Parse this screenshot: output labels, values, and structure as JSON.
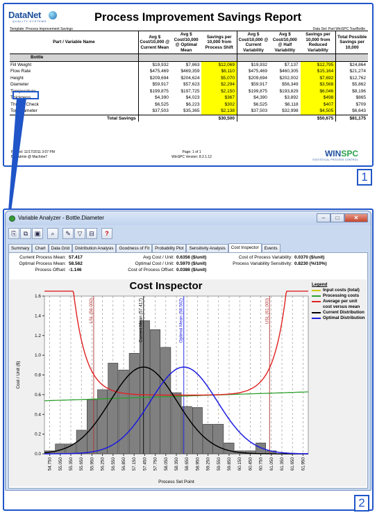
{
  "report": {
    "logo_main": "DataNet",
    "logo_sub": "QUALITY SYSTEMS",
    "title": "Process Improvement Savings Report",
    "template_line": "Template: Process Improvement Savings",
    "dataset_line": "Data Set: Part WinSPC TourBottle",
    "columns": [
      "Part / Variable Name",
      "Avg $ Cost/10,000 @ Current Mean",
      "Avg $ Cost/10,000 @ Optimal Mean",
      "Savings per 10,000 from Process Shift",
      "Avg $ Cost/10,000 @ Current Variability",
      "Avg $ Cost/10,000 @ Half Variability",
      "Savings per 10,000 from Reduced Variability",
      "Total Possible Savings per 10,000"
    ],
    "group": "Bottle",
    "rows": [
      [
        "Fill Weight",
        "$19,932",
        "$7,863",
        "$12,069",
        "$19,932",
        "$7,137",
        "$12,795",
        "$24,864"
      ],
      [
        "Flow Rate",
        "$475,469",
        "$469,359",
        "$6,110",
        "$475,469",
        "$460,305",
        "$15,164",
        "$21,274"
      ],
      [
        "Height",
        "$209,694",
        "$204,624",
        "$5,070",
        "$209,694",
        "$202,002",
        "$7,692",
        "$12,762"
      ],
      [
        "Diameter",
        "$59,917",
        "$57,623",
        "$2,294",
        "$59,917",
        "$56,349",
        "$3,568",
        "$5,862"
      ],
      [
        "Temperature",
        "$199,875",
        "$197,725",
        "$2,150",
        "$199,875",
        "$193,829",
        "$6,046",
        "$8,196"
      ],
      [
        "Thickness",
        "$4,390",
        "$4,023",
        "$367",
        "$4,390",
        "$3,892",
        "$498",
        "$865"
      ],
      [
        "Thread Check",
        "$6,525",
        "$6,223",
        "$302",
        "$6,525",
        "$6,118",
        "$407",
        "$709"
      ],
      [
        "Top Diameter",
        "$37,503",
        "$35,365",
        "$2,138",
        "$37,503",
        "$32,998",
        "$4,505",
        "$6,643"
      ]
    ],
    "highlight_cols": [
      3,
      6
    ],
    "total_label": "Total Savings",
    "total_shift": "$30,500",
    "total_var": "$50,675",
    "total_all": "$81,175",
    "printed": "Printed: 11/17/2011 3:07 PM",
    "by": "By: Admin @ Machine7",
    "page": "Page: 1 of 1",
    "version": "WinSPC Version: 8.2.1.12",
    "brand_a": "WIN",
    "brand_b": "SPC",
    "brand_sub": "STATISTICAL PROCESS CONTROL",
    "badge": "1"
  },
  "analyzer": {
    "window_title": "Variable Analyzer - Bottle.Diameter",
    "tabs": [
      "Summary",
      "Chart",
      "Data Grid",
      "Distribution Analysis",
      "Goodness of Fit",
      "Probability Plot",
      "Sensitivity Analysis",
      "Cost Inspector",
      "Events"
    ],
    "active_tab": "Cost Inspector",
    "stats": {
      "current_mean_label": "Current Process Mean:",
      "current_mean": "57.417",
      "optimal_mean_label": "Optimal Process Mean:",
      "optimal_mean": "58.562",
      "offset_label": "Process Offset:",
      "offset": "-1.146",
      "avg_cost_label": "Avg Cost / Unit:",
      "avg_cost": "0.6356 ($/unit)",
      "opt_cost_label": "Optimal Cost / Unit:",
      "opt_cost": "0.5970 ($/unit)",
      "offset_cost_label": "Cost of Process Offset:",
      "offset_cost": "0.0386 ($/unit)",
      "var_cost_label": "Cost of Process Variability:",
      "var_cost": "0.0370 ($/unit)",
      "var_sens_label": "Process Variability Sensitivity:",
      "var_sens": "0.8230 (%/10%)"
    },
    "badge": "2"
  },
  "chart_data": {
    "type": "bar",
    "title": "Cost Inspector",
    "xlabel": "Process Set Point",
    "ylabel": "Cost / Unit ($)",
    "ylim": [
      0,
      1.6
    ],
    "yticks": [
      "0.0",
      "0.2",
      "0.4",
      "0.6",
      "0.8",
      "1.0",
      "1.2",
      "1.4",
      "1.6"
    ],
    "categories": [
      "54.750",
      "55.050",
      "55.350",
      "55.650",
      "55.950",
      "56.250",
      "56.550",
      "56.850",
      "57.150",
      "57.450",
      "57.750",
      "58.050",
      "58.350",
      "58.650",
      "58.950",
      "59.250",
      "59.550",
      "59.850",
      "60.150",
      "60.450",
      "60.750",
      "61.050",
      "61.350",
      "61.650",
      "61.950"
    ],
    "histogram": [
      0.03,
      0.1,
      0.1,
      0.24,
      0.55,
      0.65,
      0.92,
      0.85,
      1.02,
      1.35,
      1.26,
      1.08,
      0.62,
      0.48,
      0.47,
      0.3,
      0.3,
      0.11,
      0.03,
      0.03,
      0.11,
      0.03,
      0.0,
      0.0,
      0.0
    ],
    "lsl": {
      "label": "LSL (56.000)",
      "x": 56.0
    },
    "usl": {
      "label": "USL (61.000)",
      "x": 61.0
    },
    "current_mean": {
      "label": "Current Mean (57.417)",
      "x": 57.417
    },
    "optimal_mean": {
      "label": "Optimal Mean (58.562)",
      "x": 58.562
    },
    "legend_title": "Legend",
    "series": [
      {
        "name": "Input costs (total)",
        "color": "#c8c800"
      },
      {
        "name": "Processing costs",
        "color": "#2ca02c"
      },
      {
        "name": "Average per unit cost versus mean",
        "color": "#e02020"
      },
      {
        "name": "Current Distribution",
        "color": "#000000"
      },
      {
        "name": "Optimal Distribution",
        "color": "#1a1ae0"
      }
    ]
  }
}
